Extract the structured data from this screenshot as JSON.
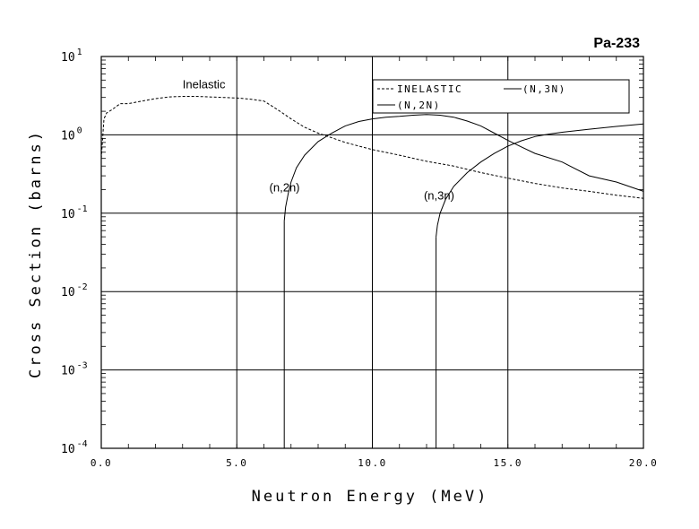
{
  "chart_data": {
    "type": "line",
    "title": "Pa-233",
    "xlabel": "Neutron Energy (MeV)",
    "ylabel": "Cross Section (barns)",
    "xlim": [
      0.0,
      20.0
    ],
    "ylim": [
      0.0001,
      10
    ],
    "yscale": "log",
    "grid": true,
    "legend_position": "top-right",
    "x_ticks": [
      "0.0",
      "5.0",
      "10.0",
      "15.0",
      "20.0"
    ],
    "x_tick_values": [
      0,
      5,
      10,
      15,
      20
    ],
    "y_ticks": [
      {
        "base": "10",
        "exp": "1",
        "value": 10
      },
      {
        "base": "10",
        "exp": "0",
        "value": 1
      },
      {
        "base": "10",
        "exp": "-1",
        "value": 0.1
      },
      {
        "base": "10",
        "exp": "-2",
        "value": 0.01
      },
      {
        "base": "10",
        "exp": "-3",
        "value": 0.001
      },
      {
        "base": "10",
        "exp": "-4",
        "value": 0.0001
      }
    ],
    "legend": [
      "INELASTIC",
      "(N,3N)",
      "(N,2N)"
    ],
    "series": [
      {
        "name": "INELASTIC",
        "style": "dashed",
        "x": [
          0.0,
          0.1,
          0.2,
          0.4,
          0.7,
          1.0,
          1.5,
          2.0,
          2.5,
          3.0,
          3.5,
          4.0,
          4.5,
          5.0,
          5.5,
          6.0,
          6.5,
          7.0,
          7.5,
          8.0,
          8.5,
          9.0,
          9.5,
          10.0,
          11.0,
          12.0,
          13.0,
          14.0,
          15.0,
          16.0,
          17.0,
          18.0,
          19.0,
          20.0
        ],
        "y": [
          0.5,
          1.6,
          1.9,
          2.1,
          2.5,
          2.5,
          2.7,
          2.9,
          3.05,
          3.1,
          3.1,
          3.05,
          3.0,
          2.95,
          2.85,
          2.7,
          2.1,
          1.6,
          1.25,
          1.05,
          0.92,
          0.8,
          0.72,
          0.65,
          0.55,
          0.46,
          0.4,
          0.33,
          0.28,
          0.24,
          0.21,
          0.19,
          0.17,
          0.155
        ]
      },
      {
        "name": "(N,2N)",
        "style": "solid",
        "x": [
          6.75,
          6.8,
          6.9,
          7.0,
          7.2,
          7.5,
          8.0,
          8.5,
          9.0,
          9.5,
          10.0,
          10.5,
          11.0,
          11.5,
          12.0,
          12.5,
          13.0,
          13.5,
          14.0,
          14.5,
          15.0,
          15.5,
          16.0,
          17.0,
          18.0,
          19.0,
          20.0
        ],
        "y": [
          0.08,
          0.12,
          0.18,
          0.25,
          0.38,
          0.55,
          0.82,
          1.05,
          1.3,
          1.48,
          1.6,
          1.68,
          1.72,
          1.78,
          1.82,
          1.78,
          1.68,
          1.5,
          1.3,
          1.05,
          0.85,
          0.7,
          0.58,
          0.45,
          0.3,
          0.25,
          0.19
        ]
      },
      {
        "name": "(N,3N)",
        "style": "solid",
        "x": [
          12.35,
          12.4,
          12.5,
          12.7,
          13.0,
          13.5,
          14.0,
          14.5,
          15.0,
          15.5,
          16.0,
          16.5,
          17.0,
          18.0,
          19.0,
          20.0
        ],
        "y": [
          0.05,
          0.07,
          0.1,
          0.15,
          0.22,
          0.33,
          0.45,
          0.58,
          0.72,
          0.84,
          0.95,
          1.02,
          1.08,
          1.18,
          1.28,
          1.38
        ]
      }
    ],
    "annotations": [
      {
        "text": "Inelastic",
        "x": 3.0,
        "y": 3.9
      },
      {
        "text": "(n,2n)",
        "x": 6.2,
        "y": 0.19
      },
      {
        "text": "(n,3n)",
        "x": 11.9,
        "y": 0.15
      }
    ]
  }
}
